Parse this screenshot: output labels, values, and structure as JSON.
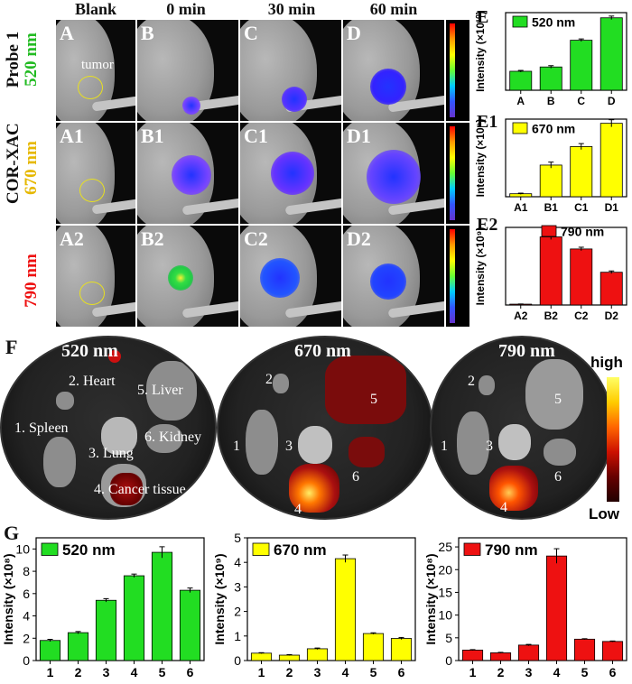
{
  "column_headers": [
    "Blank",
    "0 min",
    "30 min",
    "60 min"
  ],
  "rows": [
    {
      "probe": "Probe 1",
      "wavelength": "520 nm",
      "wavelength_color": "#22bb22",
      "labels": [
        "A",
        "B",
        "C",
        "D"
      ]
    },
    {
      "probe": "COR-XAC",
      "wavelength": "670 nm",
      "wavelength_color": "#e6b800",
      "labels": [
        "A1",
        "B1",
        "C1",
        "D1"
      ]
    },
    {
      "probe": "",
      "wavelength": "790 nm",
      "wavelength_color": "#ee1111",
      "labels": [
        "A2",
        "B2",
        "C2",
        "D2"
      ]
    }
  ],
  "tumor_label": "tumor",
  "panel_F": {
    "letter": "F",
    "dishes": [
      {
        "title": "520 nm",
        "title_color": "#22aa44",
        "labels": [
          "2. Heart",
          "5. Liver",
          "1. Spleen",
          "6. Kidney",
          "3. Lung",
          "4. Cancer tissue"
        ]
      },
      {
        "title": "670 nm",
        "title_color": "#e6c800",
        "labels": [
          "2",
          "5",
          "1",
          "3",
          "6",
          "4"
        ]
      },
      {
        "title": "790 nm",
        "title_color": "#dd1111",
        "labels": [
          "2",
          "5",
          "1",
          "3",
          "6",
          "4"
        ]
      }
    ],
    "scale_high": "high",
    "scale_low": "Low"
  },
  "panel_G_letter": "G",
  "colors": {
    "green": "#22dd22",
    "yellow": "#ffff00",
    "red": "#ee1111"
  },
  "chart_data": [
    {
      "panel": "E",
      "type": "bar",
      "legend": "520 nm",
      "color": "#22dd22",
      "categories": [
        "A",
        "B",
        "C",
        "D"
      ],
      "values": [
        2.2,
        2.7,
        5.8,
        8.4
      ],
      "errors": [
        0.1,
        0.15,
        0.15,
        0.2
      ],
      "ylabel": "Intensity",
      "yunit": "(×10¹⁰)",
      "ylim": [
        0,
        9
      ],
      "yticks": []
    },
    {
      "panel": "E1",
      "type": "bar",
      "legend": "670 nm",
      "color": "#ffff00",
      "categories": [
        "A1",
        "B1",
        "C1",
        "D1"
      ],
      "values": [
        0.5,
        5.3,
        8.4,
        12.3
      ],
      "errors": [
        0.1,
        0.5,
        0.5,
        0.6
      ],
      "ylabel": "Intensity",
      "yunit": "(×10⁹)",
      "ylim": [
        0,
        13
      ],
      "yticks": []
    },
    {
      "panel": "E2",
      "type": "bar",
      "legend": "790 nm",
      "color": "#ee1111",
      "categories": [
        "A2",
        "B2",
        "C2",
        "D2"
      ],
      "values": [
        0.1,
        7.9,
        6.5,
        3.8
      ],
      "errors": [
        0.02,
        0.3,
        0.2,
        0.15
      ],
      "ylabel": "Intensity",
      "yunit": "(×10⁹)",
      "ylim": [
        0,
        9
      ],
      "yticks": []
    },
    {
      "panel": "G1",
      "type": "bar",
      "legend": "520 nm",
      "color": "#22dd22",
      "categories": [
        "1",
        "2",
        "3",
        "4",
        "5",
        "6"
      ],
      "values": [
        1.8,
        2.5,
        5.4,
        7.6,
        9.7,
        6.3
      ],
      "errors": [
        0.1,
        0.1,
        0.15,
        0.15,
        0.5,
        0.2
      ],
      "ylabel": "Intensity",
      "yunit": "(×10⁸)",
      "ylim": [
        0,
        11
      ],
      "yticks": [
        0,
        2,
        4,
        6,
        8,
        10
      ]
    },
    {
      "panel": "G2",
      "type": "bar",
      "legend": "670 nm",
      "color": "#ffff00",
      "categories": [
        "1",
        "2",
        "3",
        "4",
        "5",
        "6"
      ],
      "values": [
        0.3,
        0.22,
        0.48,
        4.15,
        1.1,
        0.9
      ],
      "errors": [
        0.02,
        0.02,
        0.03,
        0.15,
        0.03,
        0.04
      ],
      "ylabel": "Intensity",
      "yunit": "(×10⁹)",
      "ylim": [
        0,
        5
      ],
      "yticks": [
        0,
        1,
        2,
        3,
        4,
        5
      ]
    },
    {
      "panel": "G3",
      "type": "bar",
      "legend": "790 nm",
      "color": "#ee1111",
      "categories": [
        "1",
        "2",
        "3",
        "4",
        "5",
        "6"
      ],
      "values": [
        2.3,
        1.7,
        3.4,
        23.0,
        4.7,
        4.2
      ],
      "errors": [
        0.1,
        0.1,
        0.15,
        1.6,
        0.1,
        0.1
      ],
      "ylabel": "Intensity",
      "yunit": "(×10⁸)",
      "ylim": [
        0,
        27
      ],
      "yticks": [
        0,
        5,
        10,
        15,
        20,
        25
      ]
    }
  ]
}
